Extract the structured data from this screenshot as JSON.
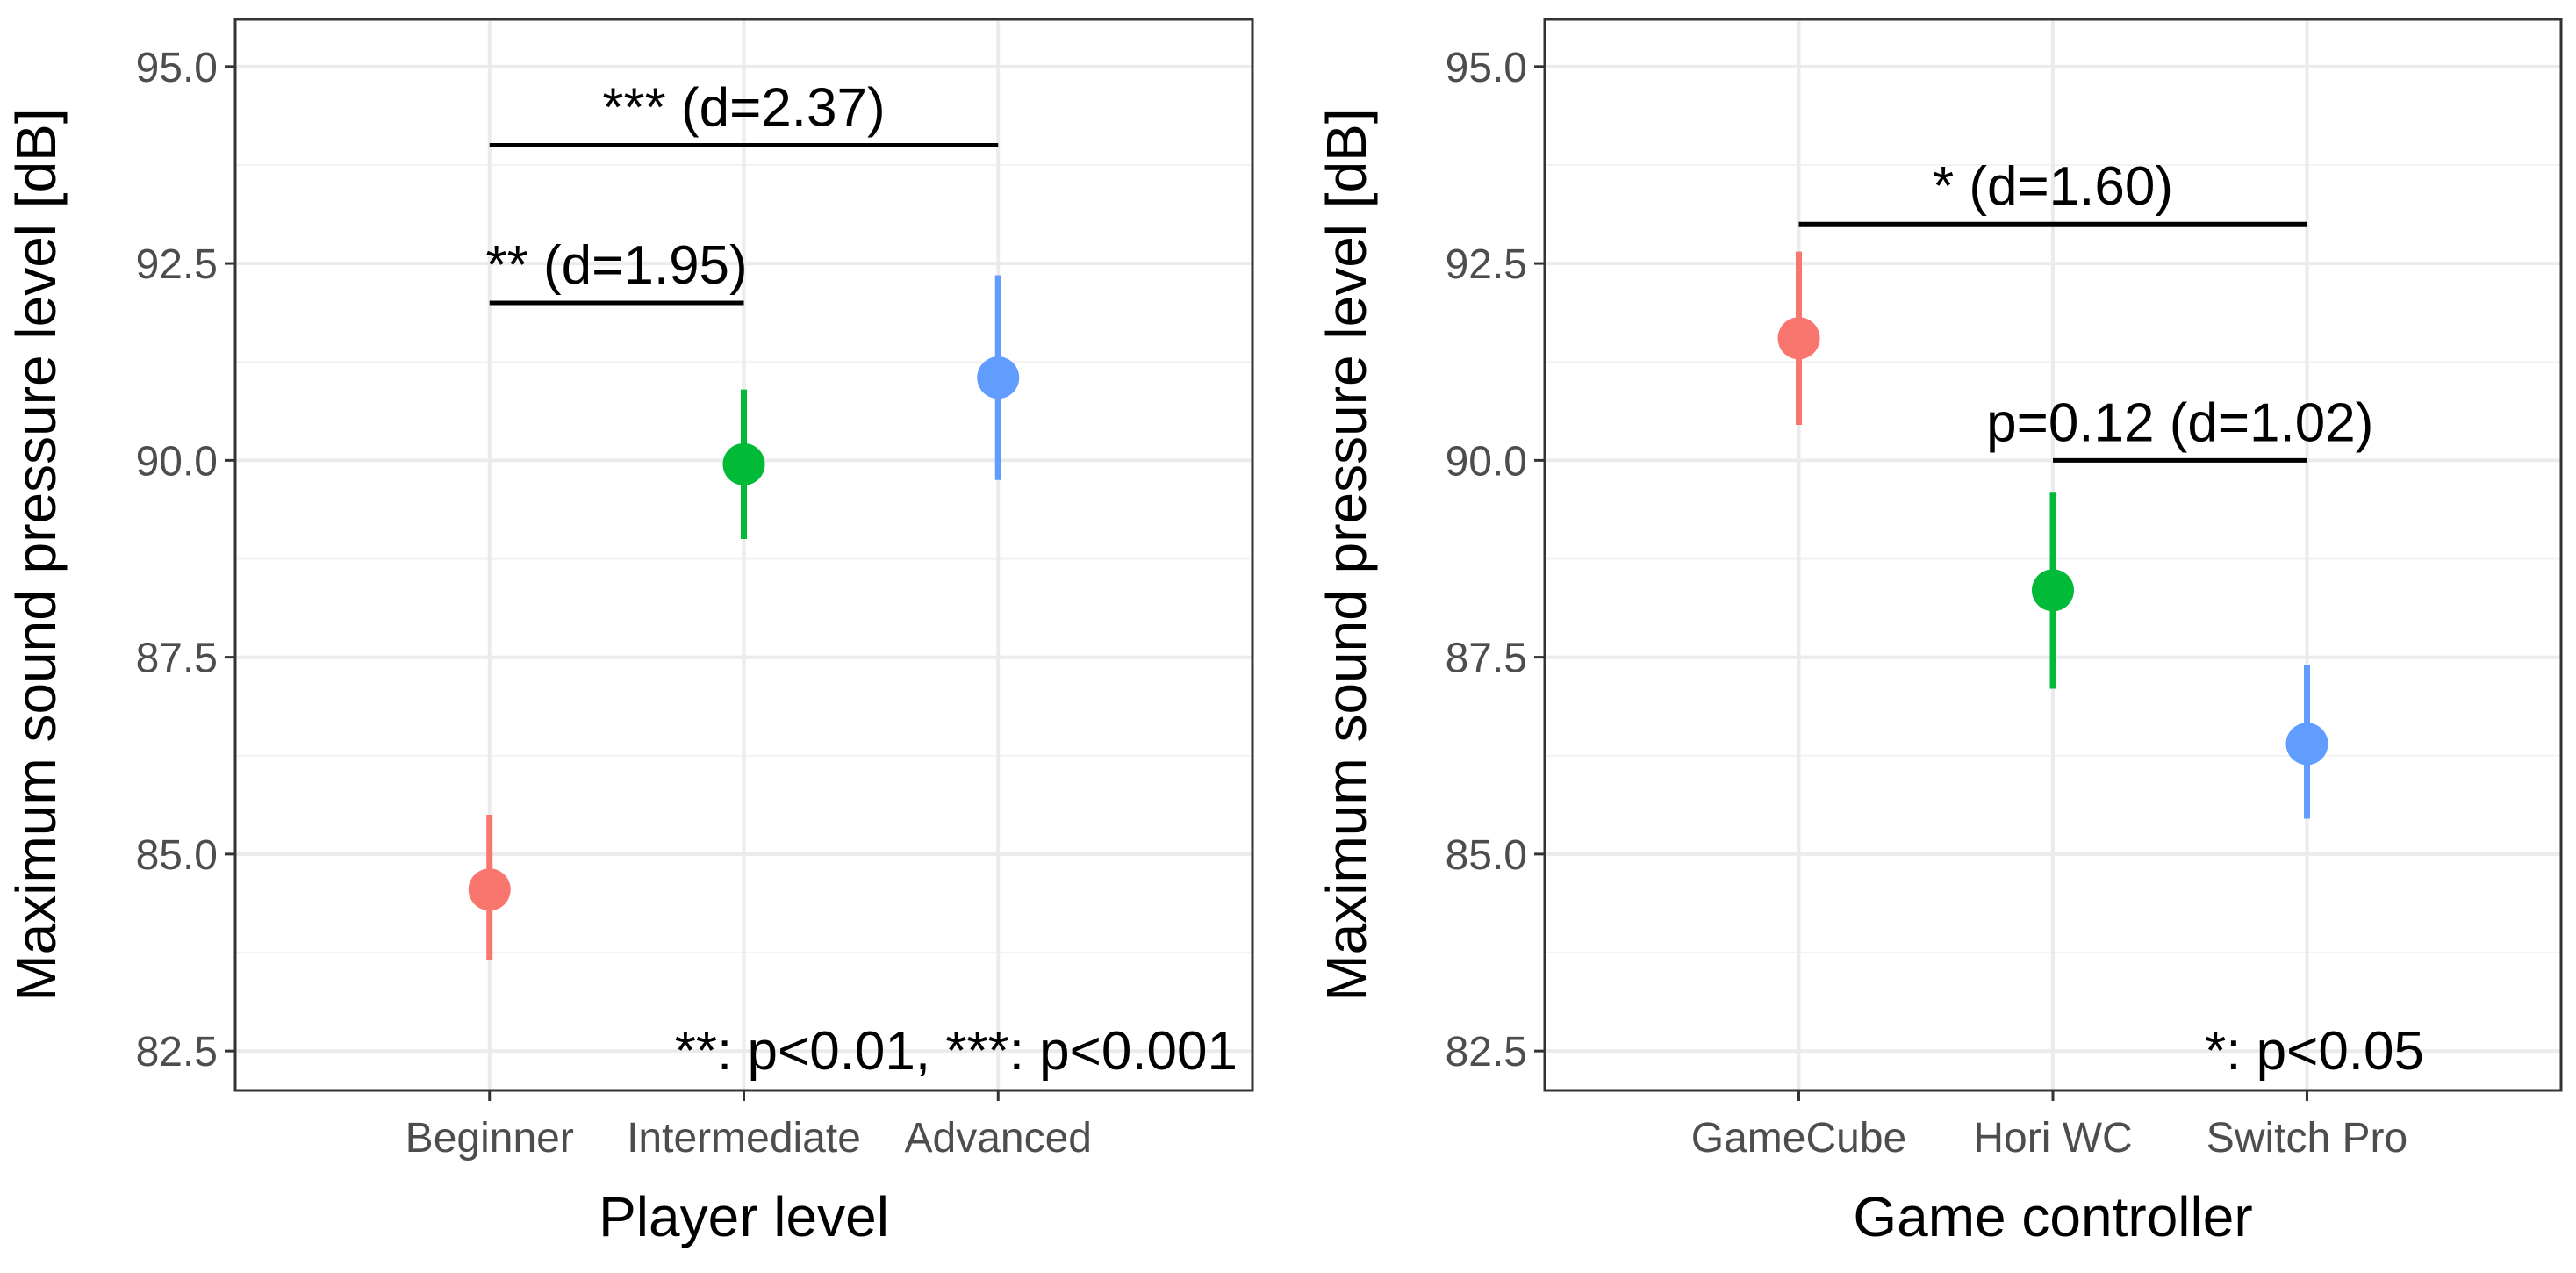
{
  "chart_data": [
    {
      "type": "pointrange",
      "xlabel": "Player level",
      "ylabel": "Maximum sound pressure level [dB]",
      "ylim": [
        82,
        95.6
      ],
      "yticks": [
        "82.5",
        "85.0",
        "87.5",
        "90.0",
        "92.5",
        "95.0"
      ],
      "categories": [
        "Beginner",
        "Intermediate",
        "Advanced"
      ],
      "points": [
        {
          "category": "Beginner",
          "mean": 84.55,
          "lower": 83.65,
          "upper": 85.5,
          "color": "#F8766D"
        },
        {
          "category": "Intermediate",
          "mean": 89.95,
          "lower": 89.0,
          "upper": 90.9,
          "color": "#00BA38"
        },
        {
          "category": "Advanced",
          "mean": 91.05,
          "lower": 89.75,
          "upper": 92.35,
          "color": "#619CFF"
        }
      ],
      "brackets": [
        {
          "from": "Beginner",
          "to": "Advanced",
          "y": 94.0,
          "label": "*** (d=2.37)"
        },
        {
          "from": "Beginner",
          "to": "Intermediate",
          "y": 92.0,
          "label": "** (d=1.95)"
        }
      ],
      "note": "**: p<0.01, ***: p<0.001"
    },
    {
      "type": "pointrange",
      "xlabel": "Game controller",
      "ylabel": "Maximum sound pressure level [dB]",
      "ylim": [
        82,
        95.6
      ],
      "yticks": [
        "82.5",
        "85.0",
        "87.5",
        "90.0",
        "92.5",
        "95.0"
      ],
      "categories": [
        "GameCube",
        "Hori WC",
        "Switch Pro"
      ],
      "points": [
        {
          "category": "GameCube",
          "mean": 91.55,
          "lower": 90.45,
          "upper": 92.65,
          "color": "#F8766D"
        },
        {
          "category": "Hori WC",
          "mean": 88.35,
          "lower": 87.1,
          "upper": 89.6,
          "color": "#00BA38"
        },
        {
          "category": "Switch Pro",
          "mean": 86.4,
          "lower": 85.45,
          "upper": 87.4,
          "color": "#619CFF"
        }
      ],
      "brackets": [
        {
          "from": "GameCube",
          "to": "Switch Pro",
          "y": 93.0,
          "label": "* (d=1.60)"
        },
        {
          "from": "Hori WC",
          "to": "Switch Pro",
          "y": 90.0,
          "label": "p=0.12 (d=1.02)"
        }
      ],
      "note": "*: p<0.05"
    }
  ]
}
